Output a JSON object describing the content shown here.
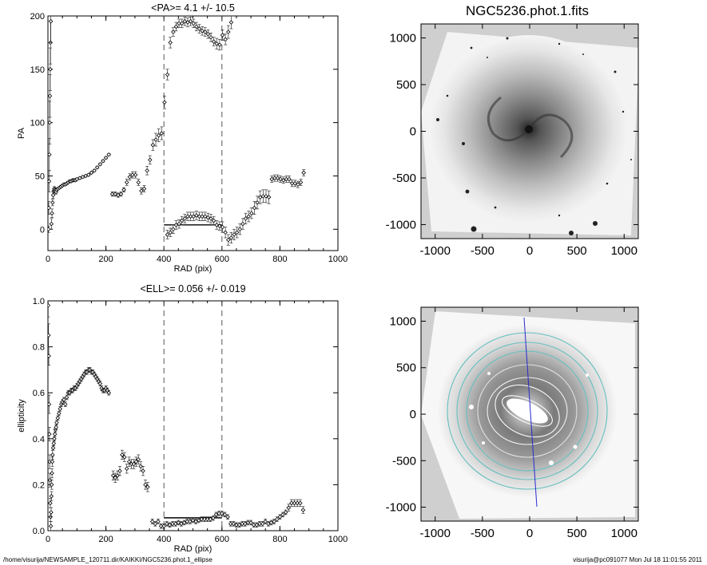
{
  "footer": {
    "path": "/home/visurija/NEWSAMPLE_120711.dir/KAIKKI/NGC5236.phot.1_ellipse",
    "stamp": "visurija@pc091077  Mon Jul 18 11:01:55 2011"
  },
  "images": [
    {
      "title": "NGC5236.phot.1.fits",
      "xticks": [
        "-1000",
        "-500",
        "0",
        "500",
        "1000"
      ],
      "yticks": [
        "1000",
        "500",
        "0",
        "-500",
        "-1000"
      ],
      "xlim": [
        -1150,
        1150
      ],
      "ylim": [
        -1150,
        1150
      ]
    },
    {
      "title": "",
      "xticks": [
        "-1000",
        "-500",
        "0",
        "500",
        "1000"
      ],
      "yticks": [
        "1000",
        "500",
        "0",
        "-500",
        "-1000"
      ],
      "xlim": [
        -1150,
        1150
      ],
      "ylim": [
        -1150,
        1150
      ],
      "overlay_line_color": "#2a2ad0",
      "contour_color": "#66bfbf"
    }
  ],
  "chart_data": [
    {
      "type": "scatter",
      "title": "<PA>=   4.1 +/-  10.5",
      "xlabel": "RAD (pix)",
      "ylabel": "PA",
      "xlim": [
        0,
        1000
      ],
      "ylim": [
        -20,
        200
      ],
      "xticks": [
        "0",
        "200",
        "400",
        "600",
        "800",
        "1000"
      ],
      "yticks": [
        "200",
        "150",
        "100",
        "50",
        "0"
      ],
      "xtick_values": [
        0,
        200,
        400,
        600,
        800,
        1000
      ],
      "ytick_values": [
        200,
        150,
        100,
        50,
        0
      ],
      "vlines": [
        400,
        600
      ],
      "hline": {
        "x": [
          400,
          600
        ],
        "y": 4.1
      },
      "series": [
        {
          "x": [
            2,
            3,
            4,
            5,
            6,
            7,
            8,
            9,
            10,
            12,
            14,
            16,
            18,
            20,
            22,
            24,
            26,
            28,
            30,
            35,
            40,
            45,
            50,
            55,
            60,
            65,
            70,
            75,
            80,
            85,
            90,
            95,
            100,
            110,
            120,
            130,
            140,
            150,
            160,
            170,
            180,
            190,
            200,
            210
          ],
          "y": [
            0,
            20,
            45,
            70,
            100,
            125,
            150,
            175,
            195,
            5,
            15,
            25,
            32,
            36,
            38,
            37,
            36,
            35,
            37,
            38,
            39,
            40,
            41,
            42,
            42,
            43,
            44,
            45,
            45,
            46,
            46,
            46,
            47,
            48,
            49,
            50,
            51,
            53,
            55,
            58,
            61,
            64,
            67,
            70
          ],
          "err": [
            3,
            6,
            10,
            15,
            20,
            20,
            20,
            20,
            20,
            5,
            4,
            3,
            3,
            2,
            2,
            2,
            2,
            2,
            1,
            1,
            1,
            1,
            1,
            1,
            1,
            1,
            1,
            1,
            1,
            1,
            1,
            1,
            1,
            1,
            1,
            1,
            1,
            1,
            1,
            1,
            1,
            1,
            1,
            1
          ]
        },
        {
          "x": [
            222,
            232,
            242,
            252,
            262,
            272,
            282,
            292,
            302,
            312,
            322,
            332,
            342,
            352,
            362,
            372,
            382,
            392,
            402,
            412,
            422,
            432,
            442,
            452,
            462,
            472,
            482,
            492,
            502,
            512,
            522,
            532,
            542,
            552,
            562,
            572,
            582,
            592,
            602,
            612,
            622,
            632
          ],
          "y": [
            33,
            33,
            32,
            33,
            37,
            44,
            49,
            51,
            51,
            44,
            36,
            38,
            55,
            65,
            79,
            84,
            88,
            90,
            119,
            145,
            175,
            185,
            190,
            193,
            193,
            195,
            194,
            195,
            193,
            190,
            188,
            186,
            185,
            183,
            180,
            176,
            174,
            173,
            182,
            178,
            185,
            194
          ],
          "err": [
            2,
            2,
            2,
            2,
            2,
            3,
            3,
            3,
            3,
            3,
            3,
            3,
            4,
            4,
            5,
            6,
            6,
            6,
            6,
            5,
            5,
            4,
            4,
            4,
            4,
            4,
            4,
            4,
            4,
            4,
            4,
            4,
            4,
            4,
            4,
            4,
            5,
            5,
            5,
            5,
            6,
            6
          ]
        },
        {
          "x": [
            412,
            422,
            432,
            442,
            452,
            462,
            472,
            482,
            492,
            502,
            512,
            522,
            532,
            542,
            552,
            562,
            572,
            582,
            592,
            602,
            612,
            622,
            632,
            642,
            652,
            662,
            672,
            682,
            692,
            702,
            712,
            722,
            732,
            742,
            752,
            762,
            772,
            782,
            792,
            802,
            812,
            822,
            832,
            842,
            852,
            862,
            872,
            882
          ],
          "y": [
            -5,
            -3,
            0,
            4,
            5,
            8,
            10,
            12,
            12,
            12,
            13,
            12,
            12,
            12,
            11,
            10,
            8,
            4,
            3,
            2,
            -3,
            -10,
            -8,
            -5,
            -3,
            0,
            5,
            10,
            12,
            15,
            20,
            25,
            30,
            31,
            31,
            30,
            47,
            48,
            48,
            47,
            46,
            47,
            47,
            43,
            43,
            42,
            44,
            53
          ],
          "err": [
            4,
            4,
            4,
            4,
            4,
            4,
            4,
            4,
            4,
            4,
            4,
            4,
            4,
            4,
            4,
            4,
            4,
            4,
            4,
            5,
            5,
            5,
            5,
            5,
            5,
            5,
            5,
            5,
            5,
            5,
            6,
            6,
            6,
            6,
            6,
            6,
            3,
            3,
            3,
            3,
            3,
            3,
            3,
            3,
            3,
            3,
            3,
            3
          ]
        }
      ]
    },
    {
      "type": "scatter",
      "title": "<ELL>= 0.056 +/-  0.019",
      "xlabel": "RAD (pix)",
      "ylabel": "ellipticity",
      "xlim": [
        0,
        1000
      ],
      "ylim": [
        0,
        1.0
      ],
      "xticks": [
        "0",
        "200",
        "400",
        "600",
        "800",
        "1000"
      ],
      "yticks": [
        "1.0",
        "0.8",
        "0.6",
        "0.4",
        "0.2",
        "0.0"
      ],
      "xtick_values": [
        0,
        200,
        400,
        600,
        800,
        1000
      ],
      "ytick_values": [
        1.0,
        0.8,
        0.6,
        0.4,
        0.2,
        0.0
      ],
      "vlines": [
        400,
        600
      ],
      "hline": {
        "x": [
          400,
          600
        ],
        "y": 0.056
      },
      "series": [
        {
          "x": [
            1,
            2,
            3,
            4,
            5,
            6,
            7,
            8,
            9,
            10,
            11,
            12,
            13,
            14,
            15,
            16,
            18,
            20,
            22,
            24,
            26,
            28,
            30,
            34,
            38,
            42,
            46,
            50,
            55,
            60,
            65,
            70,
            75,
            80,
            85,
            90,
            95,
            100,
            105,
            110,
            115,
            120,
            125,
            130,
            135,
            140,
            145,
            150,
            155,
            160,
            165,
            170,
            175,
            180,
            185,
            190,
            195,
            200,
            205,
            210
          ],
          "y": [
            0.98,
            0.85,
            0.76,
            0.55,
            0.42,
            0.3,
            0.22,
            0.12,
            0.06,
            0.02,
            0.08,
            0.15,
            0.2,
            0.25,
            0.3,
            0.33,
            0.36,
            0.38,
            0.4,
            0.42,
            0.44,
            0.45,
            0.47,
            0.49,
            0.51,
            0.53,
            0.55,
            0.56,
            0.57,
            0.55,
            0.58,
            0.6,
            0.6,
            0.61,
            0.61,
            0.62,
            0.62,
            0.63,
            0.64,
            0.65,
            0.66,
            0.67,
            0.68,
            0.69,
            0.69,
            0.7,
            0.7,
            0.69,
            0.69,
            0.68,
            0.67,
            0.66,
            0.65,
            0.64,
            0.62,
            0.61,
            0.61,
            0.62,
            0.61,
            0.6
          ],
          "err": [
            0.05,
            0.05,
            0.04,
            0.04,
            0.03,
            0.03,
            0.03,
            0.02,
            0.02,
            0.02,
            0.02,
            0.02,
            0.02,
            0.02,
            0.02,
            0.02,
            0.01,
            0.01,
            0.01,
            0.01,
            0.01,
            0.01,
            0.01,
            0.01,
            0.01,
            0.01,
            0.01,
            0.01,
            0.01,
            0.01,
            0.01,
            0.01,
            0.01,
            0.01,
            0.01,
            0.01,
            0.01,
            0.01,
            0.01,
            0.01,
            0.01,
            0.01,
            0.01,
            0.01,
            0.01,
            0.01,
            0.01,
            0.01,
            0.01,
            0.01,
            0.01,
            0.01,
            0.01,
            0.01,
            0.01,
            0.01,
            0.01,
            0.01,
            0.01,
            0.01
          ]
        },
        {
          "x": [
            225,
            232,
            240,
            248,
            256,
            264,
            272,
            280,
            288,
            296,
            304,
            312,
            320,
            328,
            336,
            344
          ],
          "y": [
            0.24,
            0.23,
            0.24,
            0.26,
            0.33,
            0.32,
            0.27,
            0.3,
            0.29,
            0.29,
            0.3,
            0.31,
            0.28,
            0.26,
            0.2,
            0.19
          ],
          "err": [
            0.02,
            0.02,
            0.02,
            0.02,
            0.02,
            0.02,
            0.02,
            0.02,
            0.02,
            0.02,
            0.02,
            0.02,
            0.02,
            0.02,
            0.02,
            0.02
          ]
        },
        {
          "x": [
            360,
            370,
            380,
            390,
            400,
            410,
            420,
            430,
            440,
            450,
            460,
            470,
            480,
            490,
            500,
            510,
            520,
            530,
            540,
            550,
            560,
            570,
            580,
            590,
            600,
            610,
            620,
            630,
            640,
            650,
            660,
            670,
            680,
            690,
            700,
            710,
            720,
            730,
            740,
            750,
            760,
            770,
            780,
            790,
            800,
            810,
            820,
            830,
            840,
            850,
            860,
            870,
            880
          ],
          "y": [
            0.04,
            0.03,
            0.04,
            0.02,
            0.02,
            0.03,
            0.025,
            0.03,
            0.03,
            0.035,
            0.03,
            0.035,
            0.04,
            0.04,
            0.045,
            0.04,
            0.045,
            0.05,
            0.05,
            0.05,
            0.05,
            0.055,
            0.07,
            0.075,
            0.075,
            0.07,
            0.06,
            0.03,
            0.03,
            0.025,
            0.025,
            0.03,
            0.03,
            0.035,
            0.035,
            0.025,
            0.025,
            0.03,
            0.03,
            0.04,
            0.03,
            0.035,
            0.04,
            0.05,
            0.06,
            0.07,
            0.08,
            0.1,
            0.12,
            0.12,
            0.12,
            0.12,
            0.09
          ],
          "err": [
            0.01,
            0.01,
            0.01,
            0.01,
            0.01,
            0.01,
            0.01,
            0.01,
            0.01,
            0.01,
            0.01,
            0.01,
            0.01,
            0.01,
            0.01,
            0.01,
            0.01,
            0.01,
            0.01,
            0.01,
            0.01,
            0.01,
            0.01,
            0.01,
            0.01,
            0.01,
            0.01,
            0.01,
            0.01,
            0.01,
            0.01,
            0.01,
            0.01,
            0.01,
            0.01,
            0.01,
            0.01,
            0.01,
            0.01,
            0.01,
            0.01,
            0.01,
            0.01,
            0.01,
            0.01,
            0.01,
            0.01,
            0.015,
            0.015,
            0.015,
            0.015,
            0.015,
            0.015
          ]
        }
      ]
    }
  ]
}
